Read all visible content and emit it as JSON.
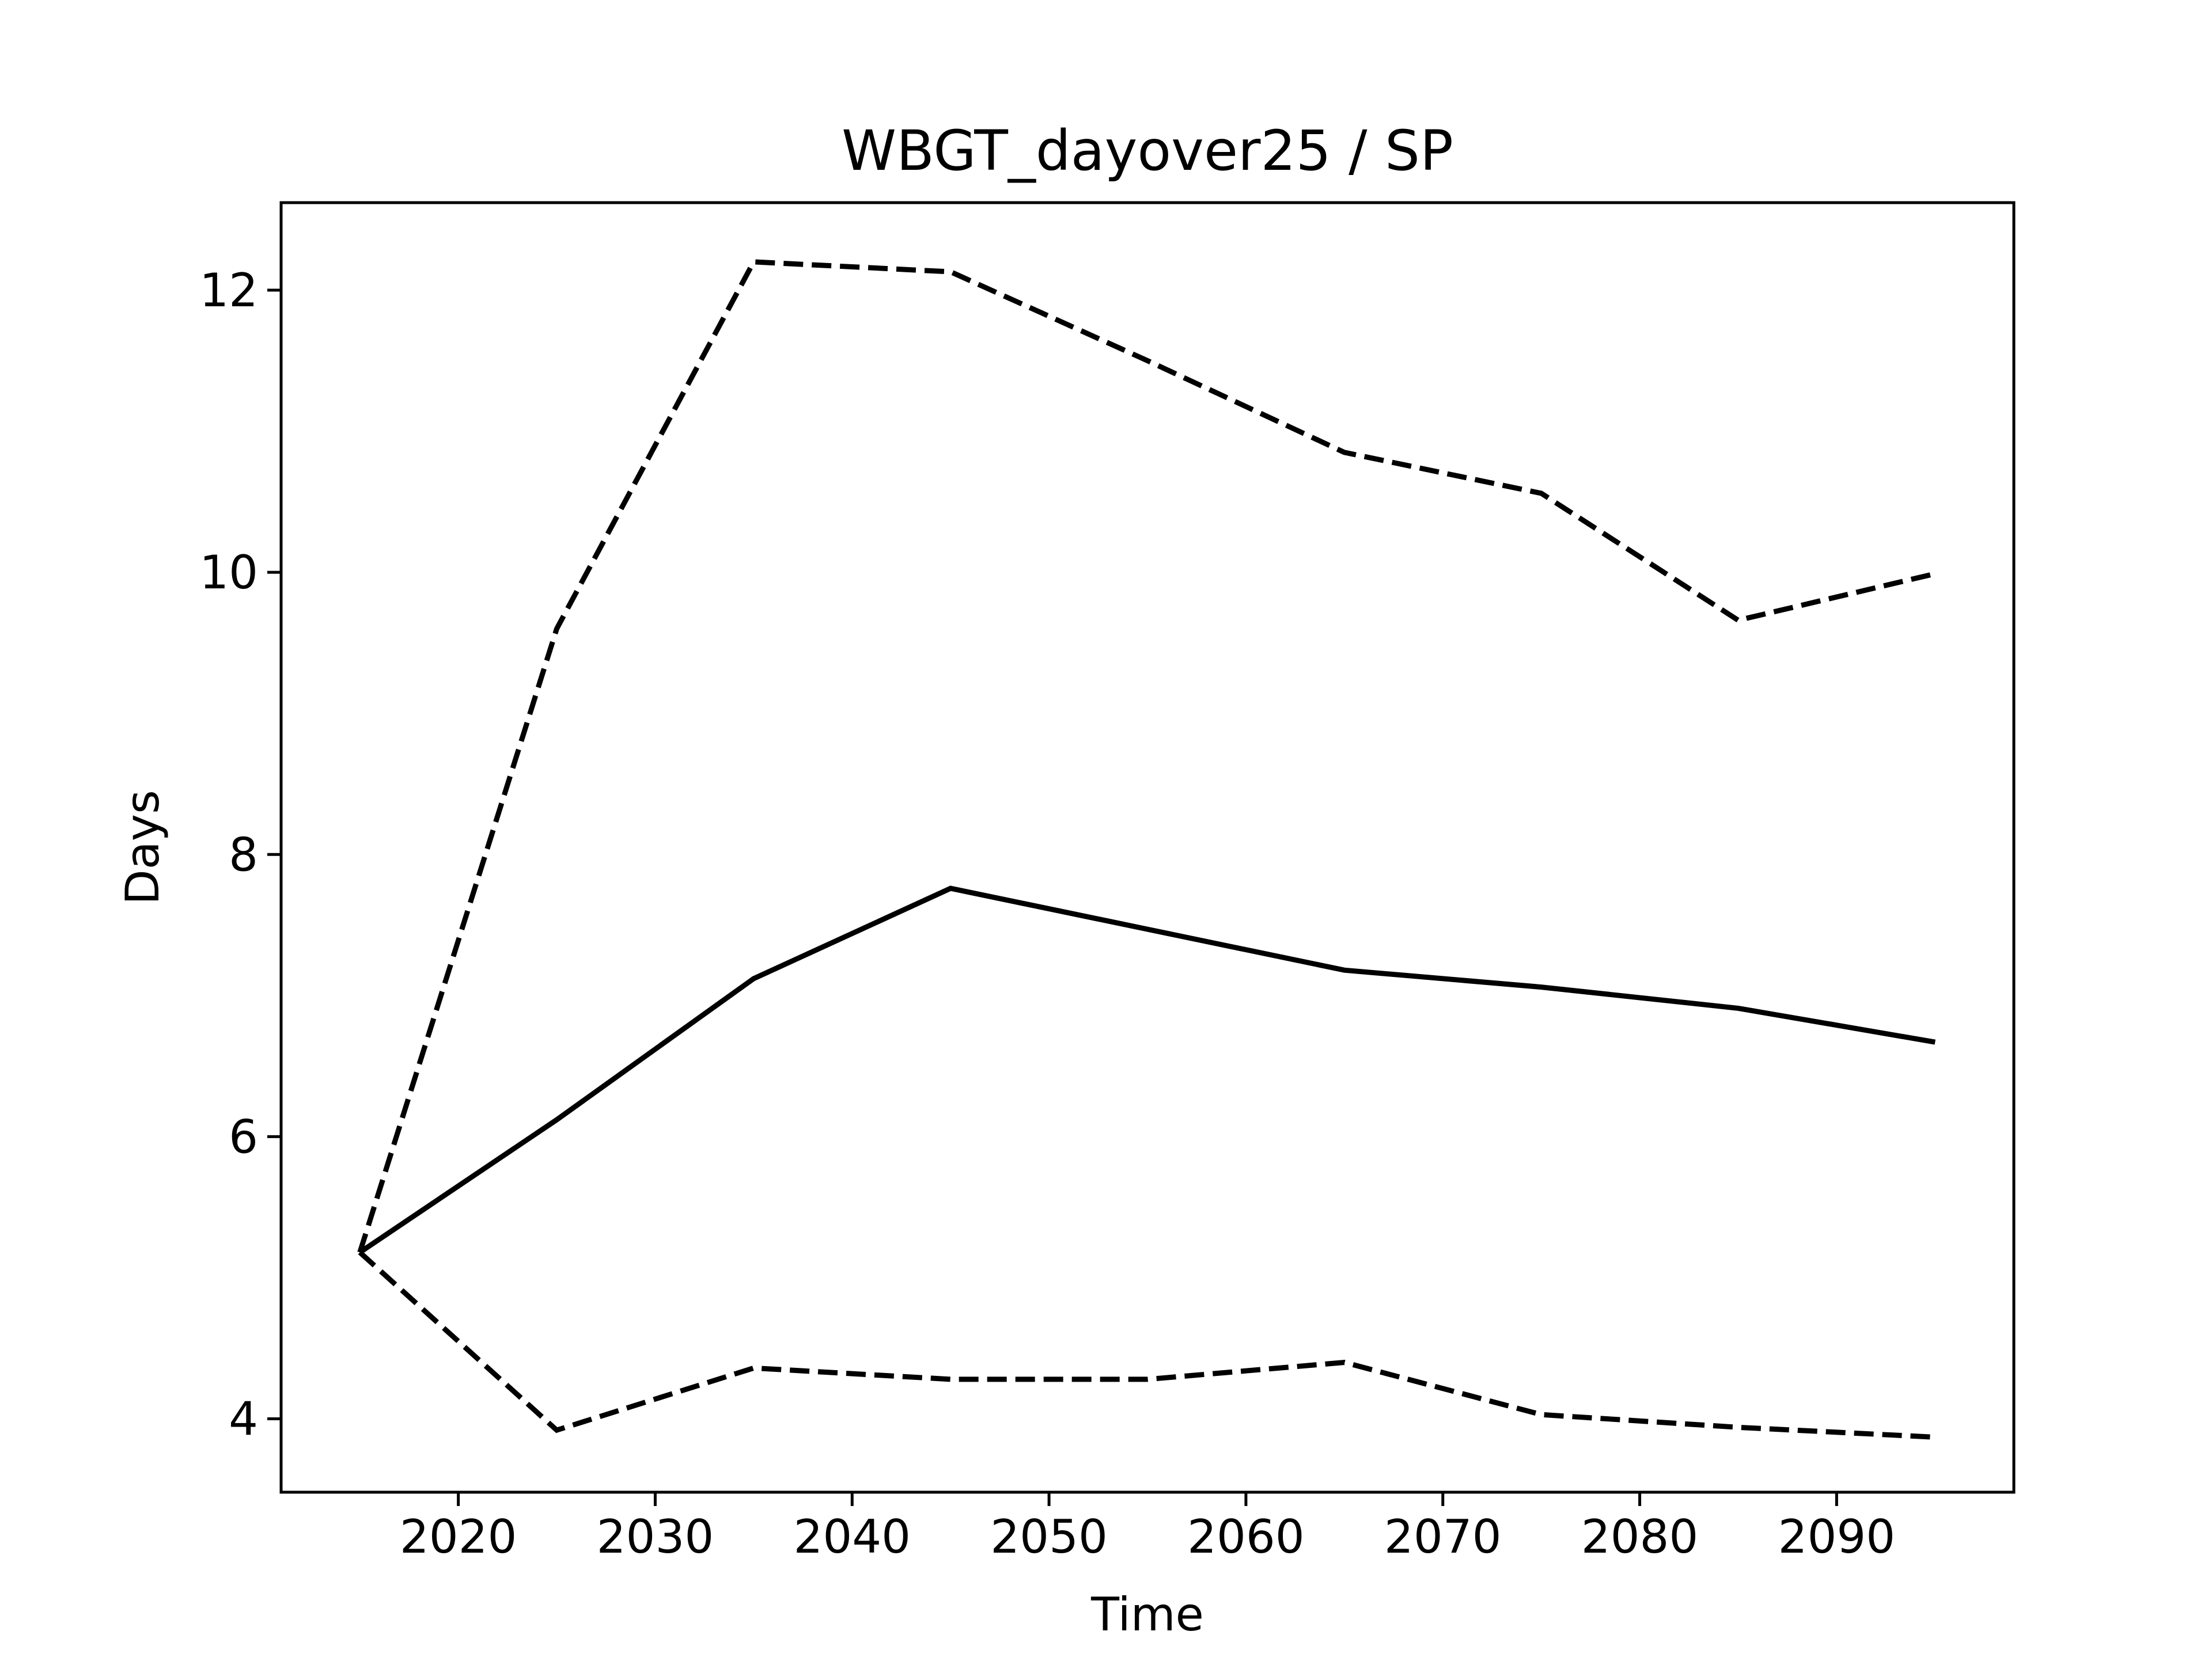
{
  "chart_data": {
    "type": "line",
    "title": "WBGT_dayover25 / SP",
    "xlabel": "Time",
    "ylabel": "Days",
    "xlim": [
      2011,
      2099
    ],
    "ylim": [
      3.48,
      12.62
    ],
    "xticks": [
      2020,
      2030,
      2040,
      2050,
      2060,
      2070,
      2080,
      2090
    ],
    "yticks": [
      4,
      6,
      8,
      10,
      12
    ],
    "grid": false,
    "legend": "none",
    "color": "#000000",
    "x": [
      2015,
      2025,
      2035,
      2045,
      2055,
      2065,
      2075,
      2085,
      2095
    ],
    "series": [
      {
        "style": "solid",
        "values": [
          5.18,
          6.12,
          7.12,
          7.76,
          7.47,
          7.18,
          7.06,
          6.91,
          6.67
        ]
      },
      {
        "style": "dashed",
        "values": [
          5.18,
          9.6,
          12.2,
          12.13,
          11.5,
          10.85,
          10.56,
          9.66,
          9.99
        ]
      },
      {
        "style": "dashed",
        "values": [
          5.18,
          3.92,
          4.36,
          4.28,
          4.28,
          4.4,
          4.03,
          3.94,
          3.87
        ]
      }
    ]
  }
}
